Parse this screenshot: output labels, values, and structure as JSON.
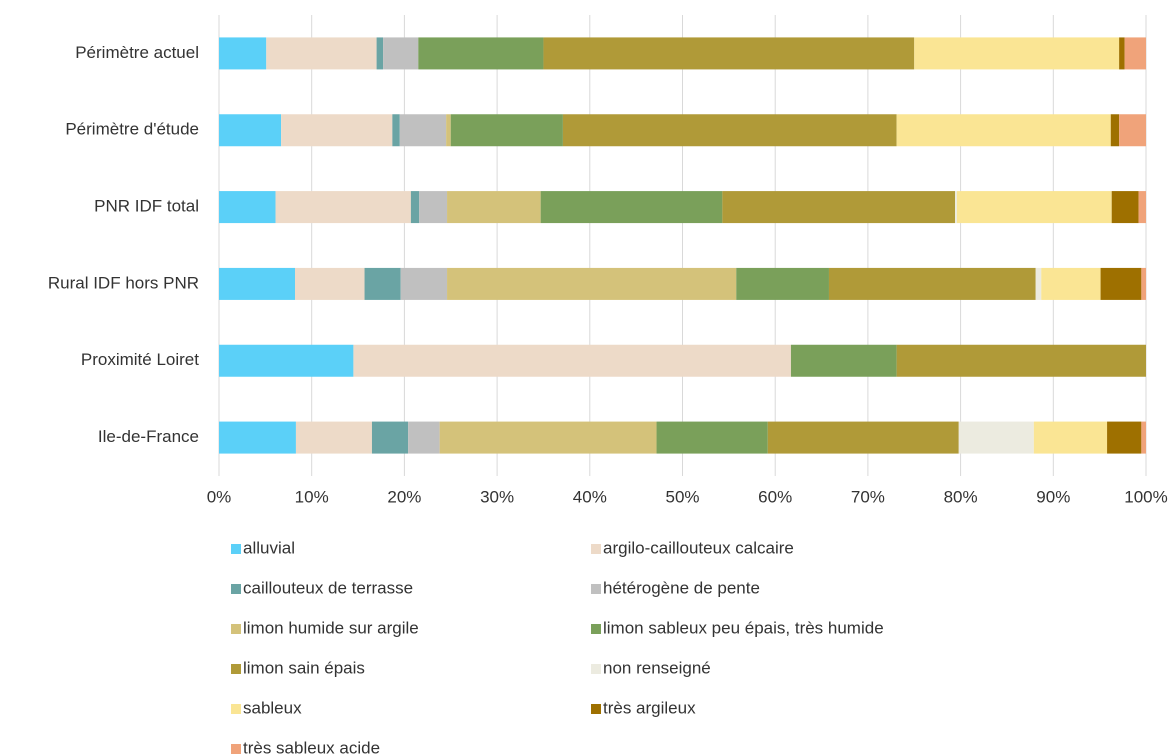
{
  "chart_data": {
    "type": "stacked_bar_horizontal",
    "categories": [
      "Périmètre actuel",
      "Périmètre d'étude",
      "PNR IDF total",
      "Rural IDF hors PNR",
      "Proximité Loiret",
      "Ile-de-France"
    ],
    "series": [
      {
        "name": "alluvial",
        "color": "#5bd0f8",
        "values": [
          5.1,
          6.7,
          6.1,
          8.2,
          14.5,
          8.3
        ]
      },
      {
        "name": "argilo-caillouteux calcaire",
        "color": "#eddac8",
        "values": [
          11.9,
          12.0,
          14.6,
          7.5,
          47.2,
          8.2
        ]
      },
      {
        "name": "caillouteux de terrasse",
        "color": "#6aa4a4",
        "values": [
          0.7,
          0.8,
          0.9,
          3.9,
          0,
          3.9
        ]
      },
      {
        "name": "hétérogène de pente",
        "color": "#c0c0c0",
        "values": [
          3.8,
          5.0,
          3.0,
          5.0,
          0,
          3.4
        ]
      },
      {
        "name": "limon humide sur argile",
        "color": "#d4c27a",
        "values": [
          0,
          0.5,
          10.1,
          31.2,
          0,
          23.4
        ]
      },
      {
        "name": "limon sableux peu épais, très humide",
        "color": "#7aa05a",
        "values": [
          13.5,
          12.1,
          19.6,
          10.0,
          11.4,
          12.0
        ]
      },
      {
        "name": "limon sain épais",
        "color": "#b09a38",
        "values": [
          40.0,
          36.0,
          25.1,
          22.3,
          26.9,
          20.6
        ]
      },
      {
        "name": "non renseigné",
        "color": "#ecebe0",
        "values": [
          0,
          0,
          0.2,
          0.6,
          0,
          8.1
        ]
      },
      {
        "name": "sableux",
        "color": "#fae594",
        "values": [
          22.1,
          23.1,
          16.7,
          6.4,
          0,
          7.9
        ]
      },
      {
        "name": "très argileux",
        "color": "#9e7000",
        "values": [
          0.6,
          0.9,
          2.9,
          4.4,
          0,
          3.7
        ]
      },
      {
        "name": "très sableux acide",
        "color": "#f0a37a",
        "values": [
          2.3,
          2.9,
          0.8,
          0.5,
          0,
          0.5
        ]
      }
    ],
    "xlim": [
      0,
      100
    ],
    "xticks": [
      {
        "value": 0,
        "label": "0%"
      },
      {
        "value": 10,
        "label": "10%"
      },
      {
        "value": 20,
        "label": "20%"
      },
      {
        "value": 30,
        "label": "30%"
      },
      {
        "value": 40,
        "label": "40%"
      },
      {
        "value": 50,
        "label": "50%"
      },
      {
        "value": 60,
        "label": "60%"
      },
      {
        "value": 70,
        "label": "70%"
      },
      {
        "value": 80,
        "label": "80%"
      },
      {
        "value": 90,
        "label": "90%"
      },
      {
        "value": 100,
        "label": "100%"
      }
    ],
    "grid": true,
    "legend": "bottom"
  }
}
